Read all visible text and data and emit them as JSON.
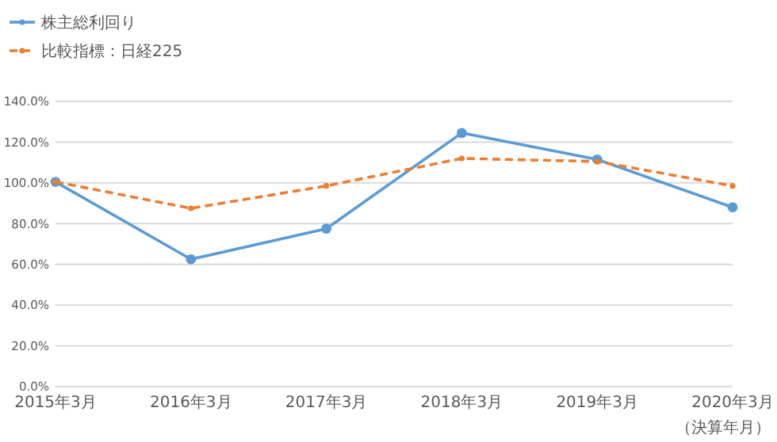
{
  "chart_data": {
    "type": "line",
    "xlabel": "（決算年月）",
    "categories": [
      "2015年3月",
      "2016年3月",
      "2017年3月",
      "2018年3月",
      "2019年3月",
      "2020年3月"
    ],
    "series": [
      {
        "name": "株主総利回り",
        "color": "#5b9bd5",
        "values": [
          100.5,
          62.5,
          77.5,
          124.5,
          111.5,
          88
        ],
        "line_style": "solid"
      },
      {
        "name": "比較指標：日経225",
        "color": "#ed7d31",
        "values": [
          100.5,
          87.5,
          98.5,
          112,
          110.5,
          98.5
        ],
        "line_style": "dashed"
      }
    ],
    "ylim": [
      0,
      140
    ],
    "yticks": [
      {
        "value": 0,
        "label": "0.0%"
      },
      {
        "value": 20,
        "label": "20.0%"
      },
      {
        "value": 40,
        "label": "40.0%"
      },
      {
        "value": 60,
        "label": "60.0%"
      },
      {
        "value": 80,
        "label": "80.0%"
      },
      {
        "value": 100,
        "label": "100.0%"
      },
      {
        "value": 120,
        "label": "120.0%"
      },
      {
        "value": 140,
        "label": "140.0%"
      }
    ],
    "grid": "y",
    "legend": "top left",
    "marker": "circle"
  }
}
